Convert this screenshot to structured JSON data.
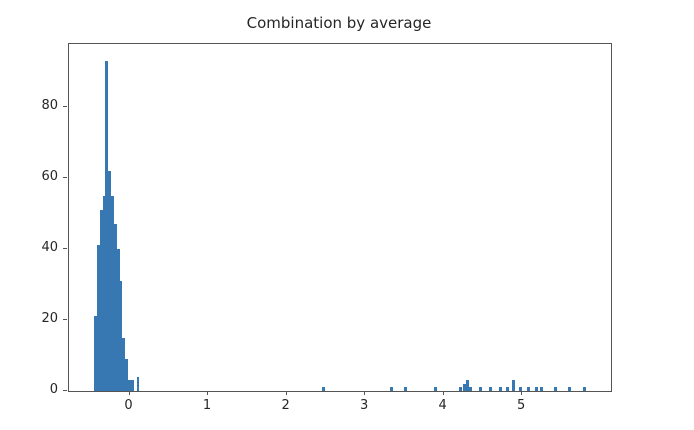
{
  "title": "Combination by average",
  "colors": {
    "bar": "#3878b2",
    "spine": "#555555",
    "text": "#262626",
    "background": "#ffffff"
  },
  "chart_data": {
    "type": "bar",
    "subtype": "histogram",
    "title": "Combination by average",
    "xlabel": "",
    "ylabel": "",
    "xlim": [
      -0.77,
      6.13
    ],
    "ylim": [
      0,
      97.7
    ],
    "xticks": [
      0,
      1,
      2,
      3,
      4,
      5
    ],
    "yticks": [
      0,
      20,
      40,
      60,
      80
    ],
    "grid": false,
    "legend": false,
    "bar_color": "#3878b2",
    "bin_width": 0.036,
    "bars": [
      [
        -0.45,
        0.036,
        21
      ],
      [
        -0.414,
        0.036,
        41
      ],
      [
        -0.378,
        0.036,
        51
      ],
      [
        -0.342,
        0.036,
        55
      ],
      [
        -0.306,
        0.036,
        93
      ],
      [
        -0.27,
        0.036,
        62
      ],
      [
        -0.234,
        0.036,
        55
      ],
      [
        -0.198,
        0.036,
        47
      ],
      [
        -0.162,
        0.036,
        40
      ],
      [
        -0.126,
        0.036,
        31
      ],
      [
        -0.09,
        0.036,
        15
      ],
      [
        -0.054,
        0.036,
        9
      ],
      [
        -0.018,
        0.036,
        3
      ],
      [
        0.018,
        0.036,
        3
      ],
      [
        0.09,
        0.036,
        4
      ],
      [
        2.45,
        0.04,
        1
      ],
      [
        3.31,
        0.04,
        1
      ],
      [
        3.5,
        0.04,
        1
      ],
      [
        3.88,
        0.04,
        1
      ],
      [
        4.2,
        0.04,
        1
      ],
      [
        4.24,
        0.04,
        2
      ],
      [
        4.28,
        0.04,
        3
      ],
      [
        4.32,
        0.04,
        1
      ],
      [
        4.45,
        0.04,
        1
      ],
      [
        4.57,
        0.04,
        1
      ],
      [
        4.7,
        0.04,
        1
      ],
      [
        4.79,
        0.04,
        1
      ],
      [
        4.87,
        0.04,
        3
      ],
      [
        4.96,
        0.04,
        1
      ],
      [
        5.06,
        0.04,
        1
      ],
      [
        5.16,
        0.04,
        1
      ],
      [
        5.23,
        0.04,
        1
      ],
      [
        5.4,
        0.04,
        1
      ],
      [
        5.58,
        0.04,
        1
      ],
      [
        5.77,
        0.04,
        1
      ]
    ]
  }
}
